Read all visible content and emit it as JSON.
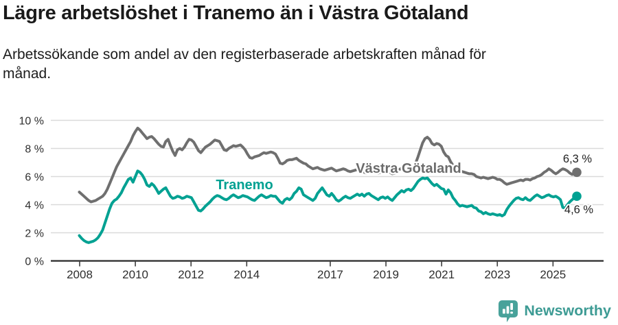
{
  "header": {
    "title": "Lägre arbetslöshet i Tranemo än i Västra Götaland",
    "subtitle_line1": "Arbetssökande som andel av den registerbaserade arbetskraften månad för",
    "subtitle_line2": "månad."
  },
  "chart_data": {
    "type": "line",
    "title": "Lägre arbetslöshet i Tranemo än i Västra Götaland",
    "unit": "%",
    "frequency": "monthly",
    "x_start_month": "2008-01",
    "x_end_month": "2025-10",
    "ylim": [
      0,
      10
    ],
    "grid": "horizontal",
    "y_tick_labels": [
      "0 %",
      "2 %",
      "4 %",
      "6 %",
      "8 %",
      "10 %"
    ],
    "x_tick_labels": [
      "2008",
      "2010",
      "2012",
      "2014",
      "2017",
      "2019",
      "2021",
      "2023",
      "2025"
    ],
    "series": [
      {
        "name": "Västra Götaland",
        "color": "#6f6f6f",
        "end_label": "6,3 %",
        "end_value": 6.3,
        "values": [
          4.9,
          4.75,
          4.6,
          4.45,
          4.3,
          4.2,
          4.25,
          4.3,
          4.4,
          4.5,
          4.6,
          4.8,
          5.1,
          5.5,
          5.9,
          6.3,
          6.7,
          7.0,
          7.3,
          7.6,
          7.9,
          8.2,
          8.5,
          8.9,
          9.2,
          9.45,
          9.3,
          9.1,
          8.9,
          8.7,
          8.8,
          8.85,
          8.7,
          8.5,
          8.3,
          8.15,
          8.1,
          8.5,
          8.65,
          8.2,
          7.8,
          7.5,
          7.9,
          8.0,
          7.9,
          8.1,
          8.4,
          8.65,
          8.6,
          8.45,
          8.15,
          7.85,
          7.7,
          7.9,
          8.1,
          8.2,
          8.3,
          8.45,
          8.6,
          8.55,
          8.5,
          8.2,
          7.9,
          7.85,
          8.0,
          8.1,
          8.2,
          8.15,
          8.2,
          8.25,
          8.1,
          7.9,
          7.6,
          7.35,
          7.3,
          7.4,
          7.45,
          7.5,
          7.6,
          7.7,
          7.65,
          7.7,
          7.75,
          7.7,
          7.6,
          7.3,
          6.95,
          6.9,
          7.0,
          7.15,
          7.2,
          7.2,
          7.25,
          7.3,
          7.15,
          7.05,
          6.95,
          6.9,
          6.75,
          6.65,
          6.55,
          6.6,
          6.65,
          6.55,
          6.5,
          6.45,
          6.5,
          6.55,
          6.6,
          6.5,
          6.4,
          6.45,
          6.5,
          6.55,
          6.5,
          6.4,
          6.35,
          6.4,
          6.45,
          6.5,
          6.45,
          6.4,
          6.3,
          6.25,
          6.3,
          6.4,
          6.45,
          6.35,
          6.25,
          6.3,
          6.4,
          6.45,
          6.4,
          6.3,
          6.2,
          6.25,
          6.35,
          6.5,
          6.6,
          6.55,
          6.45,
          6.5,
          6.6,
          6.75,
          6.95,
          7.4,
          7.9,
          8.4,
          8.7,
          8.8,
          8.65,
          8.35,
          8.25,
          8.35,
          8.3,
          8.15,
          7.75,
          7.5,
          7.4,
          7.05,
          6.8,
          6.65,
          6.5,
          6.4,
          6.35,
          6.3,
          6.25,
          6.2,
          6.2,
          6.15,
          6.0,
          5.95,
          5.9,
          5.95,
          5.9,
          5.85,
          5.9,
          5.95,
          5.9,
          5.8,
          5.8,
          5.7,
          5.55,
          5.45,
          5.5,
          5.55,
          5.6,
          5.65,
          5.7,
          5.75,
          5.7,
          5.8,
          5.8,
          5.75,
          5.85,
          5.9,
          6.0,
          6.05,
          6.15,
          6.3,
          6.4,
          6.55,
          6.45,
          6.3,
          6.2,
          6.3,
          6.45,
          6.55,
          6.5,
          6.4,
          6.25,
          6.15,
          6.25,
          6.3
        ]
      },
      {
        "name": "Tranemo",
        "color": "#00a192",
        "end_label": "4,6 %",
        "end_value": 4.6,
        "values": [
          1.8,
          1.6,
          1.45,
          1.35,
          1.3,
          1.35,
          1.4,
          1.5,
          1.65,
          1.9,
          2.2,
          2.7,
          3.2,
          3.7,
          4.1,
          4.3,
          4.4,
          4.6,
          4.85,
          5.2,
          5.5,
          5.8,
          5.9,
          5.6,
          6.0,
          6.4,
          6.3,
          6.1,
          5.8,
          5.4,
          5.3,
          5.5,
          5.35,
          5.1,
          4.8,
          4.95,
          5.1,
          5.2,
          4.9,
          4.6,
          4.45,
          4.5,
          4.6,
          4.55,
          4.45,
          4.5,
          4.6,
          4.55,
          4.5,
          4.2,
          3.9,
          3.6,
          3.55,
          3.7,
          3.9,
          4.05,
          4.2,
          4.4,
          4.55,
          4.65,
          4.6,
          4.5,
          4.4,
          4.35,
          4.45,
          4.6,
          4.7,
          4.6,
          4.5,
          4.55,
          4.65,
          4.6,
          4.55,
          4.45,
          4.35,
          4.3,
          4.45,
          4.6,
          4.7,
          4.6,
          4.5,
          4.55,
          4.65,
          4.6,
          4.6,
          4.4,
          4.2,
          4.1,
          4.35,
          4.45,
          4.35,
          4.5,
          4.8,
          4.95,
          5.2,
          5.1,
          4.7,
          4.6,
          4.5,
          4.4,
          4.3,
          4.45,
          4.8,
          5.0,
          5.2,
          4.95,
          4.7,
          4.6,
          4.8,
          4.6,
          4.35,
          4.25,
          4.35,
          4.5,
          4.6,
          4.5,
          4.45,
          4.55,
          4.65,
          4.75,
          4.65,
          4.75,
          4.6,
          4.75,
          4.8,
          4.65,
          4.55,
          4.45,
          4.35,
          4.5,
          4.55,
          4.45,
          4.55,
          4.4,
          4.3,
          4.5,
          4.7,
          4.85,
          5.0,
          4.9,
          5.05,
          5.1,
          5.0,
          5.15,
          5.4,
          5.65,
          5.8,
          5.9,
          5.85,
          5.9,
          5.7,
          5.5,
          5.35,
          5.45,
          5.3,
          5.15,
          5.1,
          4.75,
          5.05,
          4.85,
          4.5,
          4.3,
          4.05,
          3.9,
          3.95,
          3.9,
          3.85,
          3.9,
          3.95,
          3.8,
          3.75,
          3.55,
          3.5,
          3.35,
          3.45,
          3.35,
          3.3,
          3.35,
          3.3,
          3.25,
          3.3,
          3.2,
          3.3,
          3.65,
          3.9,
          4.1,
          4.3,
          4.45,
          4.5,
          4.4,
          4.35,
          4.5,
          4.35,
          4.3,
          4.45,
          4.6,
          4.7,
          4.6,
          4.5,
          4.55,
          4.65,
          4.7,
          4.6,
          4.55,
          4.6,
          4.5,
          4.35,
          3.8,
          3.75,
          4.0,
          4.2,
          4.35,
          4.5,
          4.6
        ]
      }
    ]
  },
  "footer": {
    "brand": "Newsworthy",
    "logo_icon": "speech-bubble-bar-chart-icon"
  }
}
